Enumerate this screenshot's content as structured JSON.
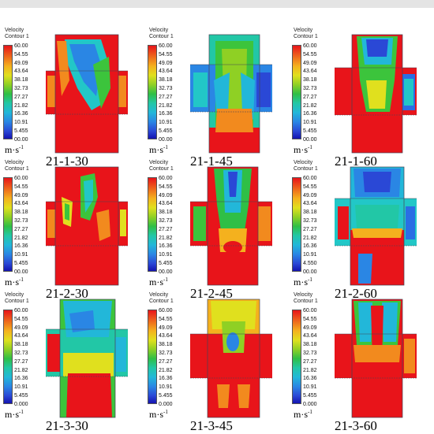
{
  "colorbar": {
    "title_line1": "Velocity",
    "title_line2": "Contour 1",
    "ticks_standard": [
      "60.00",
      "54.55",
      "49.09",
      "43.64",
      "38.18",
      "32.73",
      "27.27",
      "21.82",
      "16.36",
      "10.91",
      "5.455",
      "00.00"
    ],
    "ticks_2_60": [
      "60.00",
      "54.55",
      "49.09",
      "43.64",
      "38.18",
      "32.73",
      "27.27",
      "21.82",
      "16.36",
      "10.91",
      "4.550",
      "00.00"
    ],
    "ticks_3_30": [
      "60.00",
      "54.55",
      "49.09",
      "43.64",
      "38.18",
      "32.73",
      "27.27",
      "21.82",
      "16.36",
      "10.91",
      "5.455",
      "0.000"
    ],
    "ticks_3_45": [
      "60.00",
      "54.55",
      "49.09",
      "43.64",
      "38.18",
      "32.73",
      "27.27",
      "21.82",
      "16.36",
      "10.91",
      "5.455",
      "0.000"
    ],
    "ticks_3_60": [
      "60.00",
      "54.55",
      "49.09",
      "43.64",
      "38.18",
      "32.73",
      "27.27",
      "21.82",
      "16.36",
      "10.91",
      "5.455",
      "0.000"
    ],
    "unit": "m·s",
    "unit_exp": "-1"
  },
  "panels": [
    {
      "caption": "21-1-30"
    },
    {
      "caption": "21-1-45"
    },
    {
      "caption": "21-1-60"
    },
    {
      "caption": "21-2-30"
    },
    {
      "caption": "21-2-45"
    },
    {
      "caption": "21-2-60"
    },
    {
      "caption": "21-3-30"
    },
    {
      "caption": "21-3-45"
    },
    {
      "caption": "21-3-60"
    }
  ],
  "colors": {
    "red": "#e8141a",
    "orange": "#f28a1e",
    "yellow": "#e2e01e",
    "green": "#3cc43c",
    "cyan": "#22c7c7",
    "blue": "#2a6ee4",
    "deep_blue": "#1a28c8"
  }
}
